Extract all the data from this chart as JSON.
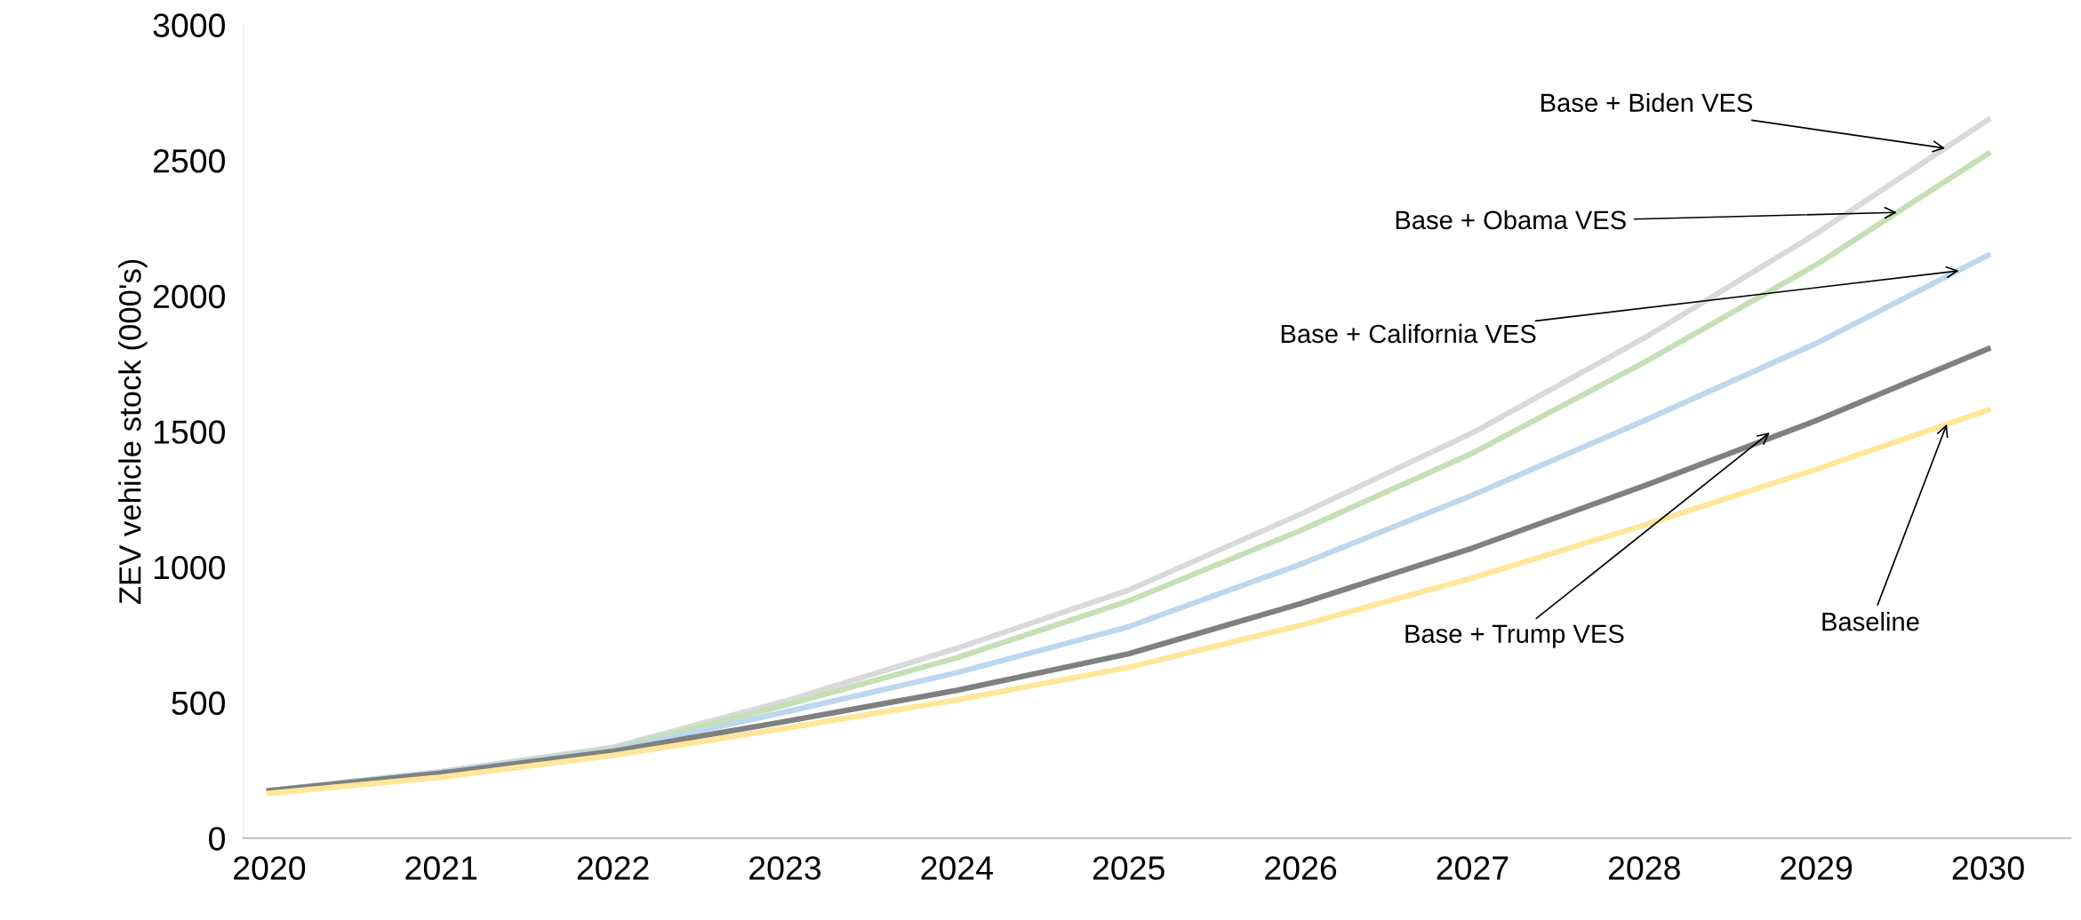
{
  "chart_data": {
    "type": "line",
    "ylabel": "ZEV vehicle stock (000's)",
    "x": [
      2020,
      2021,
      2022,
      2023,
      2024,
      2025,
      2026,
      2027,
      2028,
      2029,
      2030
    ],
    "xlim": [
      2019.85,
      2030.48
    ],
    "xticks": [
      2020,
      2021,
      2022,
      2023,
      2024,
      2025,
      2026,
      2027,
      2028,
      2029,
      2030
    ],
    "ylim": [
      0,
      3000
    ],
    "yticks": [
      0,
      500,
      1000,
      1500,
      2000,
      2500,
      3000
    ],
    "grid": false,
    "legend": false,
    "marker": "none",
    "line_style": "solid",
    "series": [
      {
        "color": "#d9d9d9",
        "values": [
          175,
          245,
          335,
          505,
          700,
          915,
          1195,
          1495,
          1845,
          2230,
          2650
        ]
      },
      {
        "color": "#c5e0b4",
        "values": [
          175,
          245,
          330,
          490,
          665,
          875,
          1135,
          1420,
          1755,
          2115,
          2525
        ]
      },
      {
        "color": "#bdd7ee",
        "values": [
          175,
          245,
          325,
          465,
          610,
          780,
          1010,
          1265,
          1540,
          1825,
          2150
        ]
      },
      {
        "color": "#808080",
        "values": [
          175,
          240,
          320,
          430,
          545,
          680,
          865,
          1070,
          1300,
          1540,
          1805
        ]
      },
      {
        "color": "#ffe699",
        "values": [
          165,
          225,
          305,
          405,
          510,
          630,
          785,
          960,
          1155,
          1360,
          1580
        ]
      }
    ],
    "annotations": [
      {
        "text": "Base + Biden VES",
        "x": 2029.75,
        "y": 2545
      },
      {
        "text": "Base + Obama VES",
        "x": 2029.47,
        "y": 2308
      },
      {
        "text": "Base + California VES",
        "x": 2029.83,
        "y": 2093
      },
      {
        "text": "Base + Trump VES",
        "x": 2028.73,
        "y": 1496
      },
      {
        "text": "Baseline",
        "x": 2029.76,
        "y": 1527
      }
    ]
  }
}
